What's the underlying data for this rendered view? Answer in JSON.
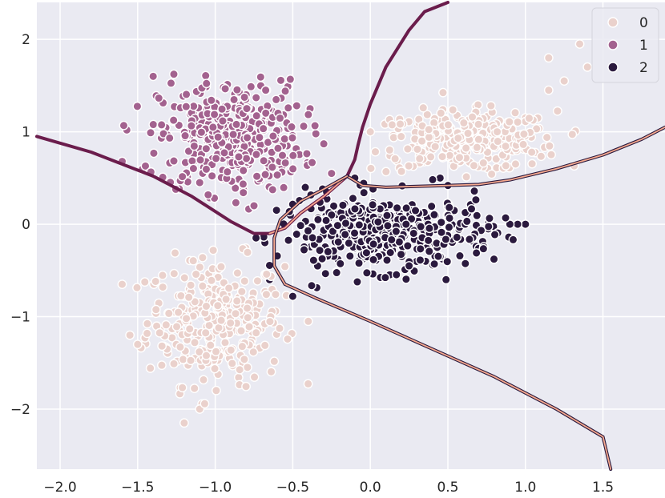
{
  "chart_data": {
    "type": "scatter",
    "title": "",
    "xlabel": "",
    "ylabel": "",
    "xlim": [
      -2.15,
      1.9
    ],
    "ylim": [
      -2.65,
      2.4
    ],
    "xticks": [
      -2.0,
      -1.5,
      -1.0,
      -0.5,
      0.0,
      0.5,
      1.0,
      1.5
    ],
    "xtick_labels": [
      "−2.0",
      "−1.5",
      "−1.0",
      "−0.5",
      "0.0",
      "0.5",
      "1.0",
      "1.5"
    ],
    "yticks": [
      -2,
      -1,
      0,
      1,
      2
    ],
    "ytick_labels": [
      "−2",
      "−1",
      "0",
      "1",
      "2"
    ],
    "grid": true,
    "legend": {
      "placement": "top-right",
      "entries": [
        {
          "label": "0",
          "color": "#ead1cc"
        },
        {
          "label": "1",
          "color": "#a3628f"
        },
        {
          "label": "2",
          "color": "#2b1a3e"
        }
      ]
    },
    "colors": {
      "background": "#eaeaf2",
      "grid": "#ffffff",
      "class0": "#ead1cc",
      "class1": "#a3628f",
      "class2": "#2b1a3e",
      "boundary_dark": "#6b1d4c",
      "boundary_pink": "#f6a98e",
      "boundary_navy": "#2b1a3e"
    },
    "clusters": [
      {
        "series": "0",
        "center": [
          -1.0,
          -1.05
        ],
        "spread": [
          0.22,
          0.34
        ],
        "count": 300,
        "range": [
          [
            -1.55,
            -0.4
          ],
          [
            -2.2,
            -0.25
          ]
        ]
      },
      {
        "series": "0",
        "center": [
          0.6,
          0.9
        ],
        "spread": [
          0.3,
          0.16
        ],
        "count": 300,
        "range": [
          [
            0.0,
            1.35
          ],
          [
            0.5,
            1.55
          ]
        ]
      },
      {
        "series": "1",
        "center": [
          -0.9,
          0.95
        ],
        "spread": [
          0.23,
          0.3
        ],
        "count": 400,
        "range": [
          [
            -1.6,
            -0.35
          ],
          [
            0.1,
            1.65
          ]
        ]
      },
      {
        "series": "2",
        "center": [
          0.1,
          -0.1
        ],
        "spread": [
          0.35,
          0.2
        ],
        "count": 400,
        "range": [
          [
            -0.75,
            1.0
          ],
          [
            -0.8,
            0.5
          ]
        ]
      }
    ],
    "outliers": [
      {
        "series": "0",
        "points": [
          [
            1.4,
            1.7
          ],
          [
            1.15,
            1.8
          ],
          [
            1.35,
            1.95
          ],
          [
            1.25,
            1.55
          ],
          [
            1.15,
            1.45
          ],
          [
            -1.6,
            -0.65
          ],
          [
            -1.5,
            -1.3
          ],
          [
            -1.55,
            -1.2
          ],
          [
            -1.1,
            -2.0
          ],
          [
            -1.2,
            -2.15
          ],
          [
            -0.4,
            -1.05
          ],
          [
            1.0,
            1.15
          ],
          [
            0.0,
            1.0
          ]
        ]
      },
      {
        "series": "1",
        "points": [
          [
            -1.4,
            1.6
          ],
          [
            -1.6,
            0.68
          ],
          [
            -1.45,
            0.63
          ],
          [
            -0.3,
            0.87
          ],
          [
            -0.25,
            0.55
          ],
          [
            -0.75,
            0.2
          ],
          [
            -0.55,
            0.7
          ],
          [
            -1.1,
            0.45
          ]
        ]
      },
      {
        "series": "2",
        "points": [
          [
            1.0,
            0.0
          ],
          [
            0.95,
            0.0
          ],
          [
            0.9,
            0.0
          ],
          [
            -0.1,
            0.5
          ],
          [
            0.45,
            0.5
          ],
          [
            0.45,
            -0.35
          ],
          [
            0.25,
            -0.45
          ],
          [
            -0.5,
            -0.78
          ],
          [
            -0.65,
            -0.6
          ]
        ]
      }
    ],
    "boundaries": [
      {
        "between": [
          "0",
          "1"
        ],
        "points": [
          [
            -2.15,
            0.95
          ],
          [
            -1.8,
            0.78
          ],
          [
            -1.4,
            0.52
          ],
          [
            -1.15,
            0.3
          ],
          [
            -0.9,
            0.03
          ],
          [
            -0.75,
            -0.1
          ],
          [
            -0.65,
            -0.1
          ],
          [
            -0.55,
            -0.04
          ],
          [
            -0.45,
            0.12
          ],
          [
            -0.3,
            0.3
          ],
          [
            -0.15,
            0.52
          ]
        ]
      },
      {
        "between": [
          "1",
          "2"
        ],
        "points": [
          [
            -0.65,
            -0.1
          ],
          [
            -0.55,
            -0.04
          ],
          [
            -0.45,
            0.12
          ],
          [
            -0.3,
            0.3
          ],
          [
            -0.15,
            0.52
          ]
        ]
      },
      {
        "between": [
          "1",
          "0"
        ],
        "points": [
          [
            -0.15,
            0.52
          ],
          [
            -0.1,
            0.7
          ],
          [
            -0.08,
            0.85
          ],
          [
            -0.05,
            1.05
          ],
          [
            0.0,
            1.3
          ],
          [
            0.1,
            1.7
          ],
          [
            0.25,
            2.1
          ],
          [
            0.35,
            2.3
          ],
          [
            0.5,
            2.4
          ]
        ]
      },
      {
        "between": [
          "0",
          "2"
        ],
        "points": [
          [
            -0.15,
            0.52
          ],
          [
            -0.05,
            0.42
          ],
          [
            0.1,
            0.4
          ],
          [
            0.5,
            0.42
          ],
          [
            0.7,
            0.43
          ],
          [
            0.9,
            0.48
          ],
          [
            1.2,
            0.6
          ],
          [
            1.5,
            0.75
          ],
          [
            1.75,
            0.92
          ],
          [
            1.9,
            1.05
          ]
        ]
      },
      {
        "between": [
          "2",
          "0"
        ],
        "points": [
          [
            -0.15,
            0.52
          ],
          [
            -0.3,
            0.38
          ],
          [
            -0.45,
            0.25
          ],
          [
            -0.58,
            0.05
          ],
          [
            -0.62,
            -0.15
          ],
          [
            -0.62,
            -0.45
          ],
          [
            -0.55,
            -0.65
          ],
          [
            -0.35,
            -0.8
          ],
          [
            0.0,
            -1.05
          ],
          [
            0.4,
            -1.35
          ],
          [
            0.8,
            -1.65
          ],
          [
            1.2,
            -2.0
          ],
          [
            1.5,
            -2.3
          ],
          [
            1.55,
            -2.65
          ]
        ]
      }
    ]
  }
}
